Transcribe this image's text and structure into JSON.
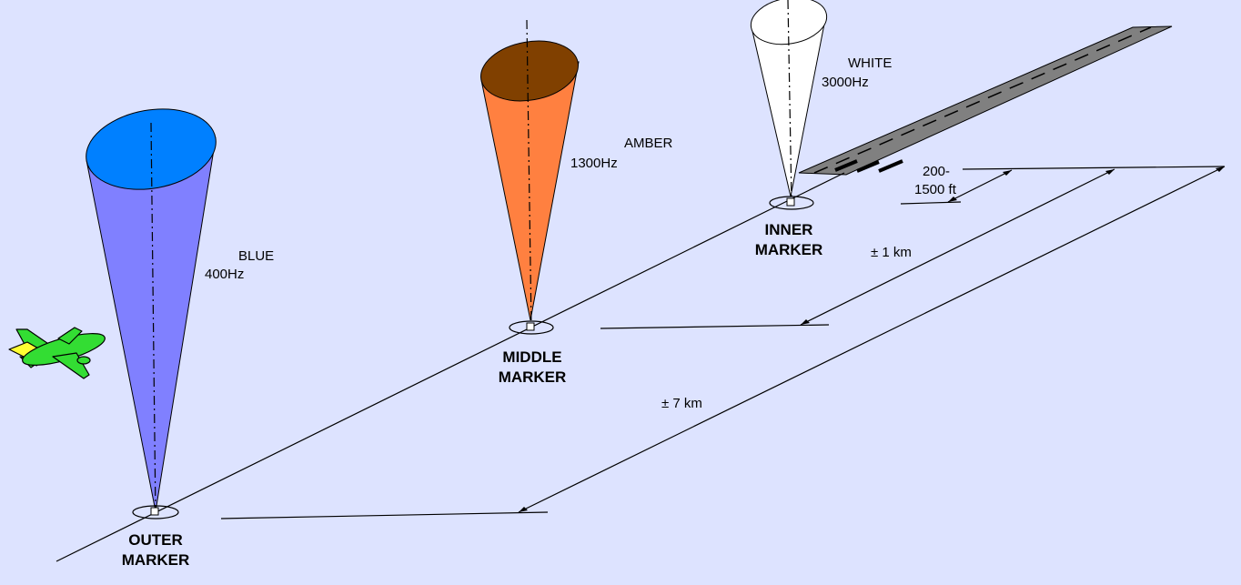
{
  "colors": {
    "background": "#DDE3FF",
    "outer_cone": "#8080FF",
    "outer_cone_top": "#0080FF",
    "middle_cone": "#FF8040",
    "middle_cone_top": "#804000",
    "inner_cone": "#FFFFFF",
    "runway": "#808080",
    "aircraft_body": "#33DD33",
    "aircraft_tail": "#FFFF33"
  },
  "markers": {
    "outer": {
      "name_line1": "OUTER",
      "name_line2": "MARKER",
      "color": "BLUE",
      "freq": "400Hz"
    },
    "middle": {
      "name_line1": "MIDDLE",
      "name_line2": "MARKER",
      "color": "AMBER",
      "freq": "1300Hz"
    },
    "inner": {
      "name_line1": "INNER",
      "name_line2": "MARKER",
      "color": "WHITE",
      "freq": "3000Hz"
    }
  },
  "distances": {
    "inner": {
      "line1": "200-",
      "line2": "1500 ft"
    },
    "middle": "± 1 km",
    "outer": "± 7 km"
  },
  "icons": {
    "aircraft": "aircraft-icon"
  }
}
